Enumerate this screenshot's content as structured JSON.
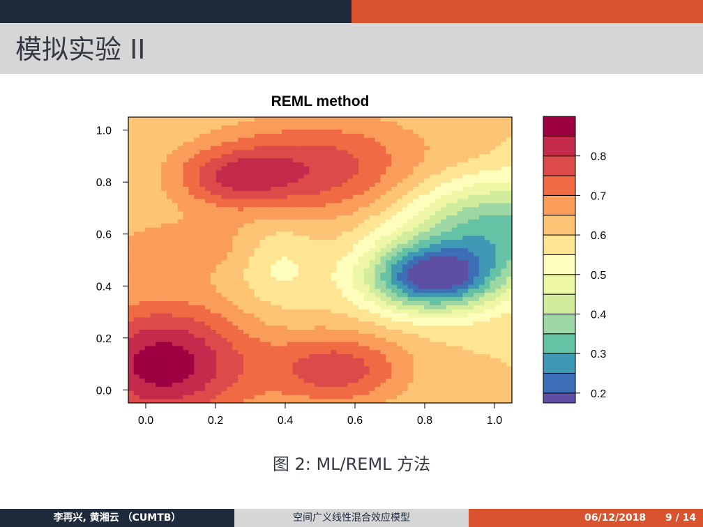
{
  "slide": {
    "title": "模拟实验 II",
    "caption": "图 2: ML/REML 方法"
  },
  "footer": {
    "authors": "李再兴, 黄湘云 （CUMTB）",
    "talk_title": "空间广义线性混合效应模型",
    "date": "06/12/2018",
    "page": "9 / 14"
  },
  "colors": {
    "top_dark": "#1f2a3c",
    "top_orange": "#d9542e",
    "title_bg": "#d6d6d6"
  },
  "chart_data": {
    "type": "heatmap",
    "title": "REML method",
    "xlim": [
      -0.05,
      1.05
    ],
    "ylim": [
      -0.05,
      1.05
    ],
    "x_ticks": [
      "0.0",
      "0.2",
      "0.4",
      "0.6",
      "0.8",
      "1.0"
    ],
    "y_ticks": [
      "0.0",
      "0.2",
      "0.4",
      "0.6",
      "0.8",
      "1.0"
    ],
    "colorbar": {
      "range": [
        0.175,
        0.9
      ],
      "tick_labels": [
        "0.2",
        "0.3",
        "0.4",
        "0.5",
        "0.6",
        "0.7",
        "0.8"
      ],
      "levels": [
        {
          "from": 0.175,
          "to": 0.2,
          "color": "#5e4fa2"
        },
        {
          "from": 0.2,
          "to": 0.25,
          "color": "#3d6fb6"
        },
        {
          "from": 0.25,
          "to": 0.3,
          "color": "#3f99b4"
        },
        {
          "from": 0.3,
          "to": 0.35,
          "color": "#66c2a5"
        },
        {
          "from": 0.35,
          "to": 0.4,
          "color": "#9cd7a4"
        },
        {
          "from": 0.4,
          "to": 0.45,
          "color": "#d1ec9c"
        },
        {
          "from": 0.45,
          "to": 0.5,
          "color": "#eef7a6"
        },
        {
          "from": 0.5,
          "to": 0.55,
          "color": "#fffdbc"
        },
        {
          "from": 0.55,
          "to": 0.6,
          "color": "#fee593"
        },
        {
          "from": 0.6,
          "to": 0.65,
          "color": "#fdc475"
        },
        {
          "from": 0.65,
          "to": 0.7,
          "color": "#fa9c5a"
        },
        {
          "from": 0.7,
          "to": 0.75,
          "color": "#f06b43"
        },
        {
          "from": 0.75,
          "to": 0.8,
          "color": "#dc4b4a"
        },
        {
          "from": 0.8,
          "to": 0.85,
          "color": "#c42a4c"
        },
        {
          "from": 0.85,
          "to": 0.9,
          "color": "#9e0142"
        }
      ]
    },
    "field_features": [
      {
        "x": 0.05,
        "y": 0.1,
        "value": 0.88,
        "spread_x": 0.18,
        "spread_y": 0.17
      },
      {
        "x": 0.5,
        "y": 0.85,
        "value": 0.78,
        "spread_x": 0.22,
        "spread_y": 0.14
      },
      {
        "x": 0.25,
        "y": 0.82,
        "value": 0.74,
        "spread_x": 0.12,
        "spread_y": 0.08
      },
      {
        "x": 0.55,
        "y": 0.08,
        "value": 0.78,
        "spread_x": 0.14,
        "spread_y": 0.1
      },
      {
        "x": 0.1,
        "y": 0.55,
        "value": 0.67,
        "spread_x": 0.2,
        "spread_y": 0.08
      },
      {
        "x": 0.82,
        "y": 0.43,
        "value": 0.2,
        "spread_x": 0.13,
        "spread_y": 0.09
      },
      {
        "x": 1.0,
        "y": 0.62,
        "value": 0.33,
        "spread_x": 0.2,
        "spread_y": 0.14
      },
      {
        "x": 0.92,
        "y": 0.95,
        "value": 0.62,
        "spread_x": 0.08,
        "spread_y": 0.08
      },
      {
        "x": 0.38,
        "y": 0.5,
        "value": 0.52,
        "spread_x": 0.08,
        "spread_y": 0.12
      }
    ]
  }
}
